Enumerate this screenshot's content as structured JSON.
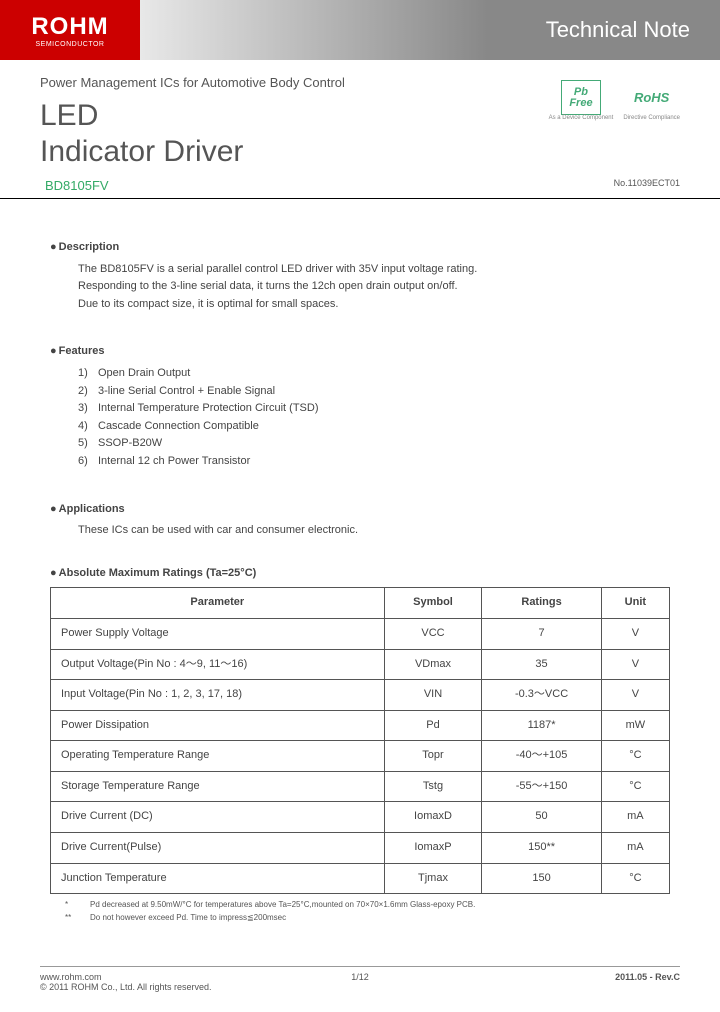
{
  "header": {
    "logo": "ROHM",
    "logo_sub": "SEMICONDUCTOR",
    "title": "Technical Note"
  },
  "title_block": {
    "category": "Power Management ICs for Automotive Body Control",
    "title_line1": "LED",
    "title_line2": "Indicator Driver",
    "part_number": "BD8105FV",
    "doc_number": "No.11039ECT01",
    "pb_line1": "Pb",
    "pb_line2": "Free",
    "pb_sub": "As a Device Component",
    "rohs": "RoHS",
    "rohs_sub": "Directive Compliance"
  },
  "description": {
    "head": "Description",
    "line1": "The BD8105FV is a serial parallel control LED driver with 35V input voltage rating.",
    "line2": "Responding to the 3-line serial data, it turns the 12ch open drain output on/off.",
    "line3": "Due to its compact size, it is optimal for small spaces."
  },
  "features": {
    "head": "Features",
    "items": [
      "Open Drain Output",
      "3-line Serial Control + Enable Signal",
      "Internal Temperature Protection Circuit (TSD)",
      "Cascade Connection Compatible",
      "SSOP-B20W",
      "Internal 12 ch Power Transistor"
    ]
  },
  "applications": {
    "head": "Applications",
    "text": "These ICs can be used with car and consumer electronic."
  },
  "ratings": {
    "head": "Absolute Maximum Ratings (Ta=25°C)",
    "columns": [
      "Parameter",
      "Symbol",
      "Ratings",
      "Unit"
    ],
    "rows": [
      {
        "group": 1,
        "param": "Power Supply Voltage",
        "symbol": "VCC",
        "rating": "7",
        "unit": "V"
      },
      {
        "group": 2,
        "param": "Output Voltage(Pin No : 4～9, 11～16)",
        "symbol": "VDmax",
        "rating": "35",
        "unit": "V"
      },
      {
        "group": 2,
        "param": "Input Voltage(Pin No : 1, 2, 3, 17, 18)",
        "symbol": "VIN",
        "rating": "-0.3～VCC",
        "unit": "V"
      },
      {
        "group": 3,
        "param": "Power Dissipation",
        "symbol": "Pd",
        "rating": "1187*",
        "unit": "mW"
      },
      {
        "group": 3,
        "param": "Operating Temperature Range",
        "symbol": "Topr",
        "rating": "-40～+105",
        "unit": "°C"
      },
      {
        "group": 4,
        "param": "Storage Temperature Range",
        "symbol": "Tstg",
        "rating": "-55～+150",
        "unit": "°C"
      },
      {
        "group": 5,
        "param": "Drive Current (DC)",
        "symbol": "IomaxD",
        "rating": "50",
        "unit": "mA"
      },
      {
        "group": 5,
        "param": "Drive Current(Pulse)",
        "symbol": "IomaxP",
        "rating": "150**",
        "unit": "mA"
      },
      {
        "group": 6,
        "param": "Junction Temperature",
        "symbol": "Tjmax",
        "rating": "150",
        "unit": "°C"
      }
    ],
    "footnote1_mark": "*",
    "footnote1": "Pd decreased at 9.50mW/°C for temperatures above Ta=25°C,mounted on 70×70×1.6mm Glass-epoxy PCB.",
    "footnote2_mark": "**",
    "footnote2": "Do not however exceed Pd. Time to impress≦200msec"
  },
  "footer": {
    "url": "www.rohm.com",
    "copyright": "© 2011 ROHM Co., Ltd. All rights reserved.",
    "page": "1/12",
    "revision": "2011.05 - Rev.C"
  }
}
